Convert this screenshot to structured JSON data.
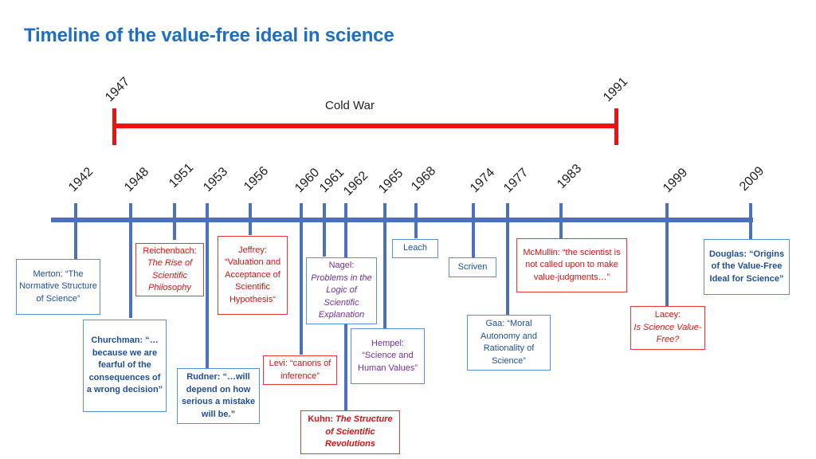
{
  "title": "Timeline of the value-free ideal in science",
  "cold_war": {
    "start": "1947",
    "end": "1991",
    "label": "Cold War"
  },
  "years": [
    "1942",
    "1948",
    "1951",
    "1953",
    "1956",
    "1960",
    "1961",
    "1962",
    "1965",
    "1968",
    "1974",
    "1977",
    "1983",
    "1999",
    "2009"
  ],
  "events": {
    "merton": "Merton: “The Normative Structure of Science”",
    "churchman": "Churchman: “…because we are fearful of the consequences of a wrong decision”",
    "reichenbach_name": "Reichenbach:",
    "reichenbach_work": "The Rise of Scientific Philosophy",
    "rudner": "Rudner: “…will depend on how serious a mistake will be.”",
    "jeffrey": "Jeffrey: “Valuation and Acceptance of Scientific Hypothesis“",
    "levi": "Levi: “canons of inference”",
    "nagel_name": "Nagel:",
    "nagel_work": "Problems in the Logic of Scientific Explanation",
    "kuhn_name": "Kuhn:",
    "kuhn_work": "The Structure of Scientific Revolutions",
    "hempel": "Hempel: “Science and Human Values”",
    "leach": "Leach",
    "scriven": "Scriven",
    "gaa": "Gaa: “Moral Autonomy and Rationality of Science”",
    "mcmullin": "McMullin: “the scientist is not called upon to make value-judgments…”",
    "lacey_name": "Lacey:",
    "lacey_work": "Is Science Value-Free?",
    "douglas": "Douglas: “Origins of the Value-Free Ideal for Science”"
  },
  "colors": {
    "title": "#1f6fc0",
    "axis": "#4a70be",
    "cold_war": "#ee1111",
    "box_border": "#5b8fd6",
    "highlight": "#dd1111",
    "purple": "#7030a0"
  }
}
